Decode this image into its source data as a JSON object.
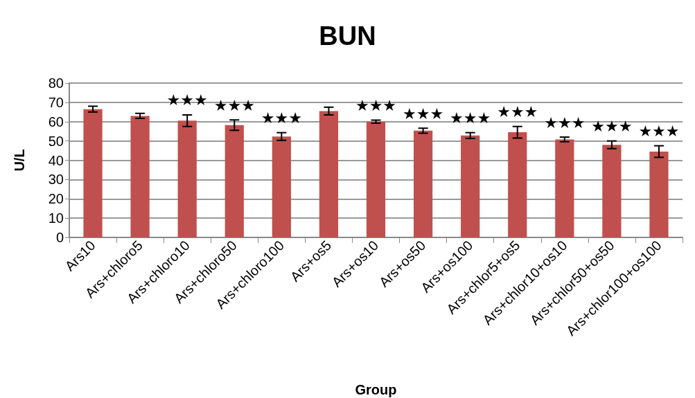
{
  "chart_data": {
    "type": "bar",
    "title": "BUN",
    "xlabel": "Group",
    "ylabel": "U/L",
    "categories": [
      "Ars10",
      "Ars+chloro5",
      "Ars+chloro10",
      "Ars+chloro50",
      "Ars+chloro100",
      "Ars+os5",
      "Ars+os10",
      "Ars+os50",
      "Ars+os100",
      "Ars+chlor5+os5",
      "Ars+chlor10+os10",
      "Ars+chlor50+os50",
      "Ars+chlor100+os100"
    ],
    "values": [
      66.5,
      63,
      60.5,
      58.2,
      52.3,
      65.5,
      60,
      55.3,
      52.8,
      54.5,
      50.8,
      48,
      44.5
    ],
    "errors": [
      1.5,
      1.3,
      3,
      2.7,
      2,
      2,
      0.8,
      1.3,
      1.5,
      3,
      1.2,
      2,
      3
    ],
    "color": "#c0504d",
    "ylim": [
      0,
      80
    ],
    "yticks": [
      0,
      10,
      20,
      30,
      40,
      50,
      60,
      70,
      80
    ],
    "grid": "y",
    "value_labels": [
      null,
      null,
      "★★★",
      "★★★",
      "★★★",
      null,
      "★★★",
      "★★★",
      "★★★",
      "★★★",
      "★★★",
      "★★★",
      "★★★"
    ]
  }
}
